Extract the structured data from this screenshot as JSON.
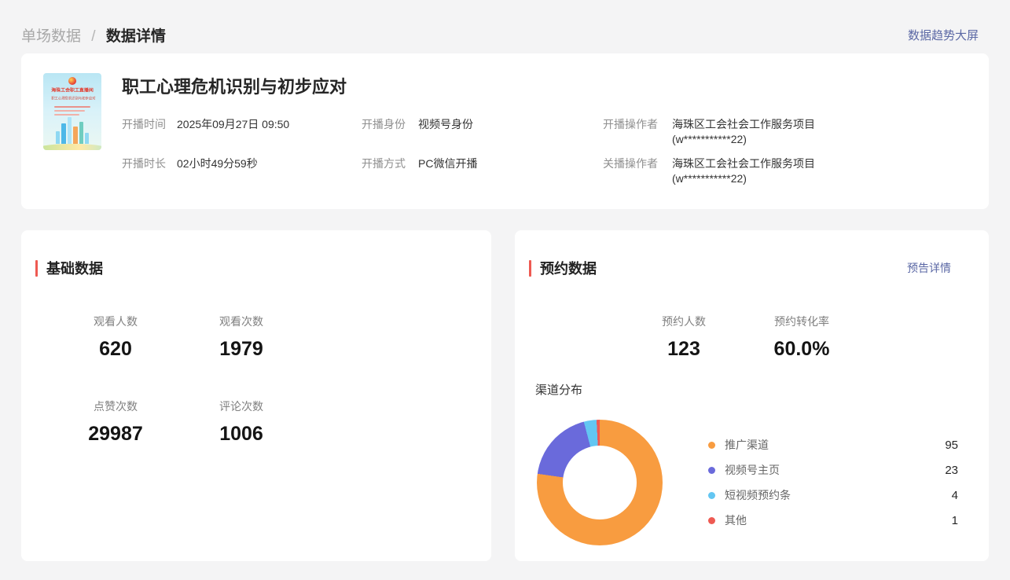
{
  "breadcrumb": {
    "parent": "单场数据",
    "separator": "/",
    "current": "数据详情"
  },
  "topbar": {
    "dashboard_link": "数据趋势大屏"
  },
  "header": {
    "title": "职工心理危机识别与初步应对",
    "poster": {
      "line1": "海珠工会职工直播间",
      "line2": "职工心理危机识别与初步应对"
    },
    "fields": [
      {
        "label": "开播时间",
        "value": "2025年09月27日 09:50"
      },
      {
        "label": "开播身份",
        "value": "视频号身份"
      },
      {
        "label": "开播操作者",
        "value": "海珠区工会社会工作服务项目",
        "value2": "(w***********22)"
      },
      {
        "label": "开播时长",
        "value": "02小时49分59秒"
      },
      {
        "label": "开播方式",
        "value": "PC微信开播"
      },
      {
        "label": "关播操作者",
        "value": "海珠区工会社会工作服务项目",
        "value2": "(w***********22)"
      }
    ]
  },
  "basic": {
    "section_title": "基础数据",
    "stats": [
      {
        "label": "观看人数",
        "value": "620"
      },
      {
        "label": "观看次数",
        "value": "1979"
      },
      {
        "label": "点赞次数",
        "value": "29987"
      },
      {
        "label": "评论次数",
        "value": "1006"
      }
    ]
  },
  "reservation": {
    "section_title": "预约数据",
    "detail_link": "预告详情",
    "stats": [
      {
        "label": "预约人数",
        "value": "123"
      },
      {
        "label": "预约转化率",
        "value": "60.0%"
      }
    ]
  },
  "chart_data": {
    "type": "pie",
    "title": "渠道分布",
    "donut": true,
    "legend_position": "right",
    "categories": [
      "推广渠道",
      "视频号主页",
      "短视频预约条",
      "其他"
    ],
    "values": [
      95,
      23,
      4,
      1
    ],
    "total": 123,
    "colors": [
      "#F89C40",
      "#6A6ADB",
      "#63C6F2",
      "#EE5A52"
    ]
  },
  "colors": {
    "accent_red": "#EE5A52",
    "link_blue": "#5B68A5",
    "page_bg": "#F4F4F5"
  }
}
